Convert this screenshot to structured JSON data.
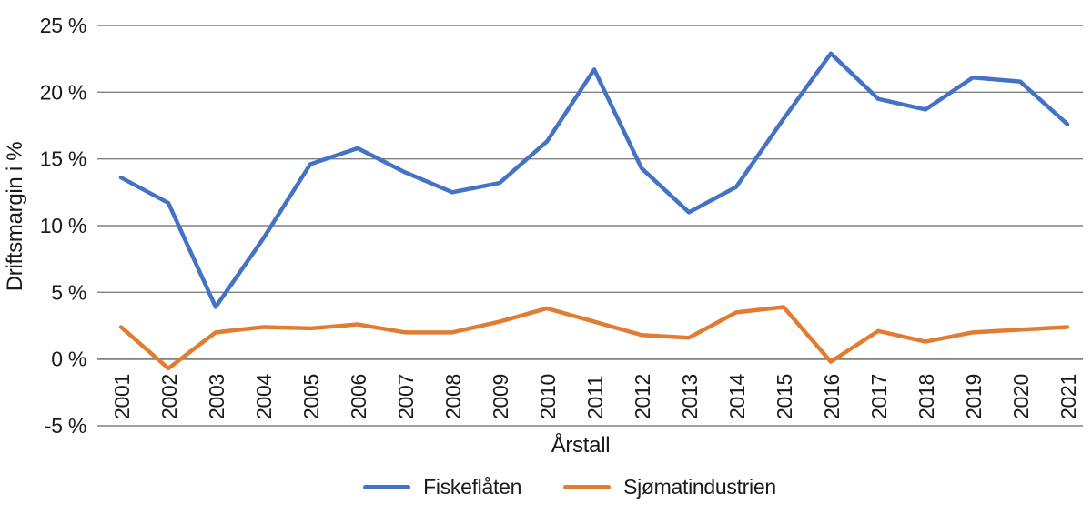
{
  "chart_data": {
    "type": "line",
    "title": "",
    "xlabel": "Årstall",
    "ylabel": "Driftsmargin i %",
    "categories": [
      "2001",
      "2002",
      "2003",
      "2004",
      "2005",
      "2006",
      "2007",
      "2008",
      "2009",
      "2010",
      "2011",
      "2012",
      "2013",
      "2014",
      "2015",
      "2016",
      "2017",
      "2018",
      "2019",
      "2020",
      "2021"
    ],
    "series": [
      {
        "name": "Fiskeflåten",
        "color": "#4472c4",
        "values": [
          13.6,
          11.7,
          3.9,
          9.0,
          14.6,
          15.8,
          14.0,
          12.5,
          13.2,
          16.3,
          21.7,
          14.3,
          11.0,
          12.9,
          18.0,
          22.9,
          19.5,
          18.7,
          21.1,
          20.8,
          17.6
        ]
      },
      {
        "name": "Sjømatindustrien",
        "color": "#e07d33",
        "values": [
          2.4,
          -0.7,
          2.0,
          2.4,
          2.3,
          2.6,
          2.0,
          2.0,
          2.8,
          3.8,
          2.8,
          1.8,
          1.6,
          3.5,
          3.9,
          -0.2,
          2.1,
          1.3,
          2.0,
          2.2,
          2.4
        ]
      }
    ],
    "ylim": [
      -5,
      25
    ],
    "yticks": [
      25,
      20,
      15,
      10,
      5,
      0,
      -5
    ],
    "ytick_labels": [
      "25 %",
      "20 %",
      "15 %",
      "10 %",
      "5 %",
      "0 %",
      "-5 %"
    ],
    "grid": true,
    "gridline_color": "#808080",
    "legend_position": "bottom"
  }
}
